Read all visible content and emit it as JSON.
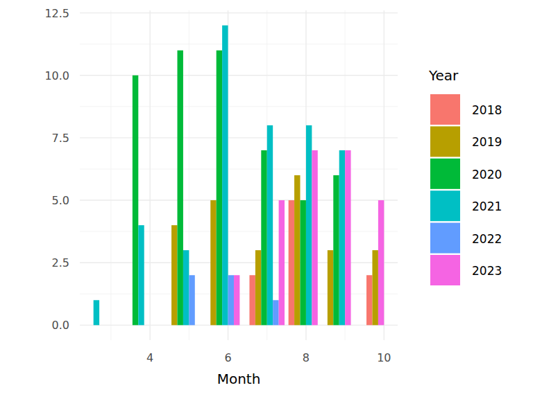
{
  "chart_data": {
    "type": "bar",
    "x_label": "Month",
    "legend_title": "Year",
    "x": [
      3,
      4,
      5,
      6,
      7,
      8,
      9,
      10
    ],
    "series": [
      {
        "name": "2018",
        "color": "#F8766D",
        "values": [
          null,
          null,
          null,
          null,
          2,
          5,
          null,
          2
        ]
      },
      {
        "name": "2019",
        "color": "#B79F00",
        "values": [
          null,
          null,
          4,
          5,
          3,
          6,
          3,
          3
        ]
      },
      {
        "name": "2020",
        "color": "#00BA38",
        "values": [
          null,
          10,
          11,
          11,
          7,
          5,
          6,
          null
        ]
      },
      {
        "name": "2021",
        "color": "#00BFC4",
        "values": [
          1,
          4,
          3,
          12,
          8,
          8,
          7,
          null
        ]
      },
      {
        "name": "2022",
        "color": "#619CFF",
        "values": [
          null,
          null,
          2,
          2,
          1,
          null,
          null,
          null
        ]
      },
      {
        "name": "2023",
        "color": "#F564E3",
        "values": [
          null,
          null,
          null,
          2,
          5,
          7,
          7,
          5
        ]
      }
    ],
    "xlim": [
      2.2,
      10.35
    ],
    "xticks": [
      4,
      6,
      8,
      10
    ],
    "ylim": [
      -0.6,
      12.6
    ],
    "yticks": [
      {
        "value": 0,
        "label": "0.0"
      },
      {
        "value": 2.5,
        "label": "2.5"
      },
      {
        "value": 5,
        "label": "5.0"
      },
      {
        "value": 7.5,
        "label": "7.5"
      },
      {
        "value": 10,
        "label": "10.0"
      },
      {
        "value": 12.5,
        "label": "12.5"
      }
    ],
    "grid": true
  }
}
